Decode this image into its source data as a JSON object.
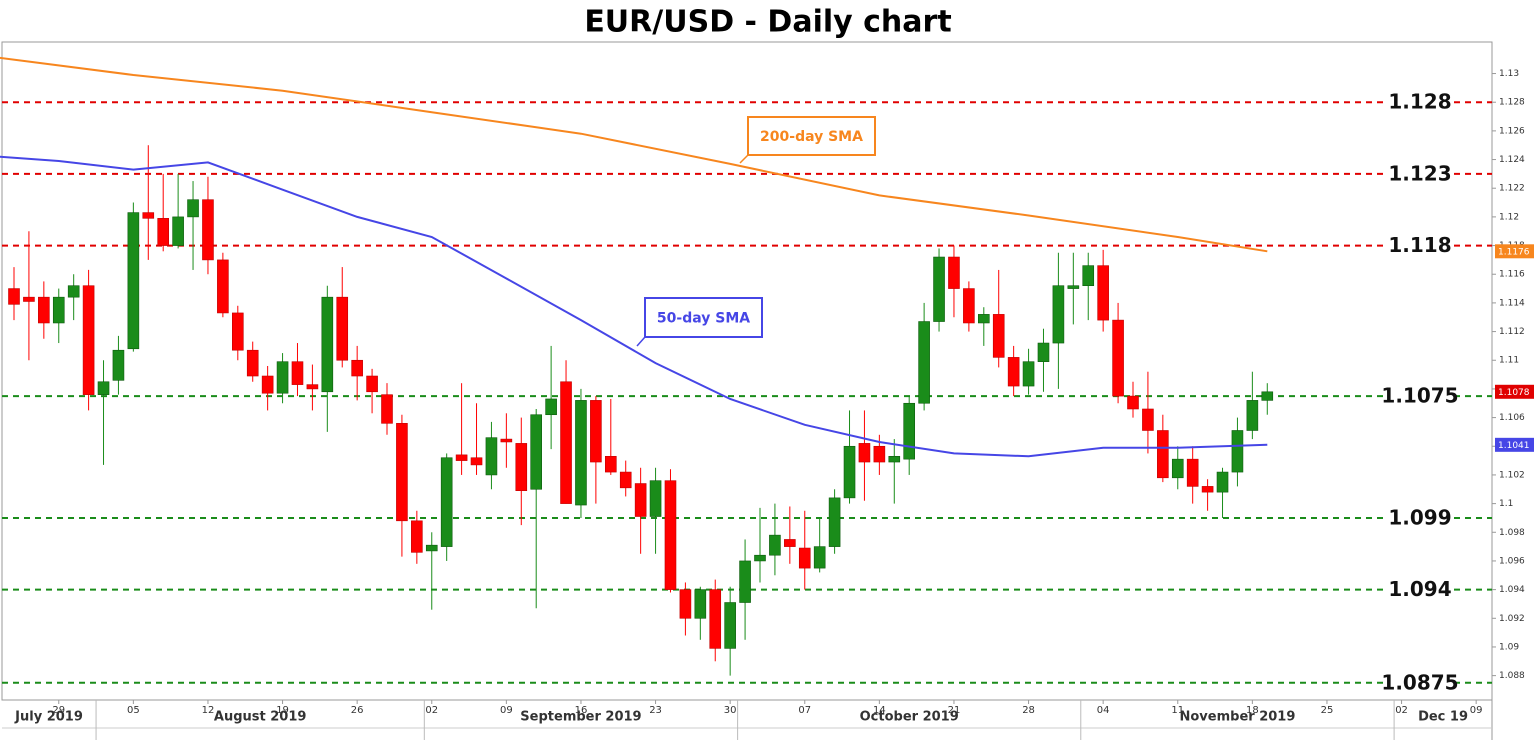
{
  "chart_data": {
    "type": "candlestick",
    "title": "EUR/USD - Daily chart",
    "up_color": "#1a8c1a",
    "down_color": "#ff0000",
    "x": [
      "2019-07-24",
      "2019-07-25",
      "2019-07-26",
      "2019-07-29",
      "2019-07-30",
      "2019-07-31",
      "2019-08-01",
      "2019-08-02",
      "2019-08-05",
      "2019-08-06",
      "2019-08-07",
      "2019-08-08",
      "2019-08-09",
      "2019-08-12",
      "2019-08-13",
      "2019-08-14",
      "2019-08-15",
      "2019-08-16",
      "2019-08-19",
      "2019-08-20",
      "2019-08-21",
      "2019-08-22",
      "2019-08-23",
      "2019-08-26",
      "2019-08-27",
      "2019-08-28",
      "2019-08-29",
      "2019-08-30",
      "2019-09-02",
      "2019-09-03",
      "2019-09-04",
      "2019-09-05",
      "2019-09-06",
      "2019-09-09",
      "2019-09-10",
      "2019-09-11",
      "2019-09-12",
      "2019-09-13",
      "2019-09-16",
      "2019-09-17",
      "2019-09-18",
      "2019-09-19",
      "2019-09-20",
      "2019-09-23",
      "2019-09-24",
      "2019-09-25",
      "2019-09-26",
      "2019-09-27",
      "2019-09-30",
      "2019-10-01",
      "2019-10-02",
      "2019-10-03",
      "2019-10-04",
      "2019-10-07",
      "2019-10-08",
      "2019-10-09",
      "2019-10-10",
      "2019-10-11",
      "2019-10-14",
      "2019-10-15",
      "2019-10-16",
      "2019-10-17",
      "2019-10-18",
      "2019-10-21",
      "2019-10-22",
      "2019-10-23",
      "2019-10-24",
      "2019-10-25",
      "2019-10-28",
      "2019-10-29",
      "2019-10-30",
      "2019-10-31",
      "2019-11-01",
      "2019-11-04",
      "2019-11-05",
      "2019-11-06",
      "2019-11-07",
      "2019-11-08",
      "2019-11-11",
      "2019-11-12",
      "2019-11-13",
      "2019-11-14",
      "2019-11-15",
      "2019-11-18",
      "2019-11-19"
    ],
    "open": [
      1.115,
      1.1144,
      1.1144,
      1.1126,
      1.1144,
      1.1152,
      1.1076,
      1.1086,
      1.1108,
      1.1203,
      1.1199,
      1.118,
      1.12,
      1.1212,
      1.117,
      1.1133,
      1.1107,
      1.1089,
      1.1077,
      1.1099,
      1.1083,
      1.1078,
      1.1144,
      1.11,
      1.1089,
      1.1076,
      1.1056,
      1.0988,
      1.0967,
      1.097,
      1.1034,
      1.1032,
      1.102,
      1.1045,
      1.1042,
      1.101,
      1.1062,
      1.1085,
      1.0999,
      1.1072,
      1.1033,
      1.1022,
      1.1014,
      1.0991,
      1.1016,
      1.094,
      1.092,
      1.094,
      1.0899,
      1.0931,
      1.096,
      1.0964,
      1.0975,
      1.0969,
      1.0955,
      1.097,
      1.1004,
      1.1042,
      1.104,
      1.1029,
      1.1031,
      1.107,
      1.1127,
      1.1172,
      1.115,
      1.1126,
      1.1132,
      1.1102,
      1.1082,
      1.1099,
      1.1112,
      1.115,
      1.1152,
      1.1166,
      1.1128,
      1.1075,
      1.1066,
      1.1051,
      1.1018,
      1.1031,
      1.1012,
      1.1008,
      1.1022,
      1.1051,
      1.1072
    ],
    "high": [
      1.1165,
      1.119,
      1.1155,
      1.115,
      1.116,
      1.1163,
      1.11,
      1.1117,
      1.121,
      1.125,
      1.123,
      1.123,
      1.1225,
      1.1228,
      1.1175,
      1.1138,
      1.1113,
      1.1096,
      1.1105,
      1.1112,
      1.1097,
      1.1152,
      1.1165,
      1.111,
      1.1094,
      1.1084,
      1.1062,
      1.0995,
      1.098,
      1.1035,
      1.1084,
      1.107,
      1.1057,
      1.1063,
      1.106,
      1.1066,
      1.111,
      1.11,
      1.108,
      1.1075,
      1.1073,
      1.103,
      1.1025,
      1.1025,
      1.1024,
      1.0945,
      1.0942,
      1.0947,
      1.0942,
      1.0975,
      1.0997,
      1.1,
      1.0998,
      1.0995,
      1.099,
      1.101,
      1.1065,
      1.1065,
      1.1048,
      1.1045,
      1.1075,
      1.114,
      1.1178,
      1.118,
      1.1155,
      1.1137,
      1.1163,
      1.111,
      1.1108,
      1.1122,
      1.1175,
      1.1175,
      1.1175,
      1.1177,
      1.114,
      1.1085,
      1.1092,
      1.1062,
      1.104,
      1.104,
      1.1017,
      1.1025,
      1.106,
      1.1092,
      1.1084
    ],
    "low": [
      1.1128,
      1.11,
      1.1115,
      1.1112,
      1.1128,
      1.1065,
      1.1027,
      1.1076,
      1.1106,
      1.117,
      1.1176,
      1.1178,
      1.1163,
      1.116,
      1.113,
      1.11,
      1.1085,
      1.1065,
      1.107,
      1.1075,
      1.1065,
      1.105,
      1.1095,
      1.1072,
      1.1063,
      1.1048,
      1.0963,
      1.0958,
      1.0926,
      1.096,
      1.102,
      1.102,
      1.101,
      1.1025,
      1.0985,
      1.0927,
      1.1038,
      1.1,
      1.099,
      1.1,
      1.102,
      1.1005,
      1.0965,
      1.0965,
      1.0938,
      1.0908,
      1.0905,
      1.089,
      1.088,
      1.0905,
      1.0945,
      1.095,
      1.0958,
      1.094,
      1.0952,
      1.0965,
      1.1,
      1.1002,
      1.102,
      1.1,
      1.102,
      1.1065,
      1.112,
      1.113,
      1.112,
      1.111,
      1.1095,
      1.1075,
      1.1076,
      1.1078,
      1.108,
      1.1125,
      1.1128,
      1.112,
      1.107,
      1.106,
      1.1035,
      1.1015,
      1.101,
      1.1,
      1.0995,
      1.099,
      1.1012,
      1.1045,
      1.1062
    ],
    "close": [
      1.1139,
      1.1141,
      1.1126,
      1.1144,
      1.1152,
      1.1076,
      1.1085,
      1.1107,
      1.1203,
      1.1199,
      1.118,
      1.12,
      1.1212,
      1.117,
      1.1133,
      1.1107,
      1.1089,
      1.1077,
      1.1099,
      1.1083,
      1.108,
      1.1144,
      1.11,
      1.1089,
      1.1078,
      1.1056,
      1.0988,
      1.0966,
      1.0971,
      1.1032,
      1.103,
      1.1027,
      1.1046,
      1.1043,
      1.1009,
      1.1062,
      1.1073,
      1.1,
      1.1072,
      1.1029,
      1.1022,
      1.1011,
      1.0991,
      1.1016,
      1.094,
      1.092,
      1.094,
      1.0899,
      1.0931,
      1.096,
      1.0964,
      1.0978,
      1.097,
      1.0955,
      1.097,
      1.1004,
      1.104,
      1.1029,
      1.1029,
      1.1033,
      1.107,
      1.1127,
      1.1172,
      1.115,
      1.1126,
      1.1132,
      1.1102,
      1.1082,
      1.1099,
      1.1112,
      1.1152,
      1.1152,
      1.1166,
      1.1128,
      1.1075,
      1.1066,
      1.1051,
      1.1018,
      1.1031,
      1.1012,
      1.1008,
      1.1022,
      1.1051,
      1.1072,
      1.1078
    ],
    "series": [
      {
        "name": "200-day SMA",
        "color": "#f7861e",
        "x": [
          "2019-07-23",
          "2019-08-05",
          "2019-08-19",
          "2019-09-02",
          "2019-09-16",
          "2019-09-30",
          "2019-10-14",
          "2019-10-28",
          "2019-11-11",
          "2019-11-19"
        ],
        "values": [
          1.1311,
          1.1299,
          1.1288,
          1.1273,
          1.1258,
          1.1237,
          1.1215,
          1.1201,
          1.1186,
          1.1176
        ]
      },
      {
        "name": "50-day SMA",
        "color": "#4646e6",
        "x": [
          "2019-07-23",
          "2019-07-29",
          "2019-08-05",
          "2019-08-12",
          "2019-08-19",
          "2019-08-26",
          "2019-09-02",
          "2019-09-09",
          "2019-09-16",
          "2019-09-23",
          "2019-09-30",
          "2019-10-07",
          "2019-10-14",
          "2019-10-21",
          "2019-10-28",
          "2019-11-04",
          "2019-11-11",
          "2019-11-19"
        ],
        "values": [
          1.1242,
          1.1239,
          1.1233,
          1.1238,
          1.1219,
          1.12,
          1.1186,
          1.1157,
          1.1128,
          1.1098,
          1.1073,
          1.1055,
          1.1043,
          1.1035,
          1.1033,
          1.1039,
          1.1039,
          1.1041
        ]
      }
    ],
    "levels": [
      {
        "value": 1.128,
        "color": "#e00000"
      },
      {
        "value": 1.123,
        "color": "#e00000"
      },
      {
        "value": 1.118,
        "color": "#e00000"
      },
      {
        "value": 1.1075,
        "color": "#1a8c1a"
      },
      {
        "value": 1.099,
        "color": "#1a8c1a"
      },
      {
        "value": 1.094,
        "color": "#1a8c1a"
      },
      {
        "value": 1.0875,
        "color": "#1a8c1a"
      }
    ],
    "ylim": [
      1.0863,
      1.1322
    ],
    "yticks": [
      1.088,
      1.09,
      1.092,
      1.094,
      1.096,
      1.098,
      1.1,
      1.102,
      1.104,
      1.106,
      1.108,
      1.11,
      1.112,
      1.114,
      1.116,
      1.118,
      1.12,
      1.122,
      1.124,
      1.126,
      1.128,
      1.13
    ],
    "xticks": [
      {
        "value": "2019-07-29",
        "label": "29"
      },
      {
        "value": "2019-08-05",
        "label": "05"
      },
      {
        "value": "2019-08-12",
        "label": "12"
      },
      {
        "value": "2019-08-19",
        "label": "19"
      },
      {
        "value": "2019-08-26",
        "label": "26"
      },
      {
        "value": "2019-09-02",
        "label": "02"
      },
      {
        "value": "2019-09-09",
        "label": "09"
      },
      {
        "value": "2019-09-16",
        "label": "16"
      },
      {
        "value": "2019-09-23",
        "label": "23"
      },
      {
        "value": "2019-09-30",
        "label": "30"
      },
      {
        "value": "2019-10-07",
        "label": "07"
      },
      {
        "value": "2019-10-14",
        "label": "14"
      },
      {
        "value": "2019-10-21",
        "label": "21"
      },
      {
        "value": "2019-10-28",
        "label": "28"
      },
      {
        "value": "2019-11-04",
        "label": "04"
      },
      {
        "value": "2019-11-11",
        "label": "11"
      },
      {
        "value": "2019-11-18",
        "label": "18"
      },
      {
        "value": "2019-11-25",
        "label": "25"
      },
      {
        "value": "2019-12-02",
        "label": "02"
      },
      {
        "value": "2019-12-09",
        "label": "09"
      }
    ],
    "month_labels": [
      {
        "value": "2019-07",
        "label": "July 2019"
      },
      {
        "value": "2019-08",
        "label": "August 2019"
      },
      {
        "value": "2019-09",
        "label": "September 2019"
      },
      {
        "value": "2019-10",
        "label": "October 2019"
      },
      {
        "value": "2019-11",
        "label": "November 2019"
      },
      {
        "value": "2019-12",
        "label": "Dec 19"
      }
    ]
  }
}
